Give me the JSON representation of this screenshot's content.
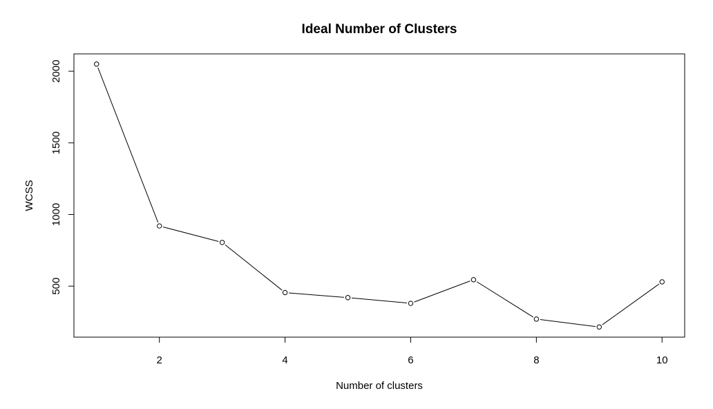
{
  "chart_data": {
    "type": "line",
    "title": "Ideal Number of Clusters",
    "xlabel": "Number of clusters",
    "ylabel": "WCSS",
    "x": [
      1,
      2,
      3,
      4,
      5,
      6,
      7,
      8,
      9,
      10
    ],
    "series": [
      {
        "values": [
          2050,
          920,
          805,
          455,
          420,
          380,
          545,
          270,
          215,
          530
        ]
      }
    ],
    "x_ticks": [
      2,
      4,
      6,
      8,
      10
    ],
    "y_ticks": [
      500,
      1000,
      1500,
      2000
    ],
    "xlim": [
      0.64,
      10.36
    ],
    "ylim": [
      144,
      2121
    ],
    "grid": false,
    "legend": "none",
    "marker": "open-circle",
    "line_color": "#000000"
  }
}
